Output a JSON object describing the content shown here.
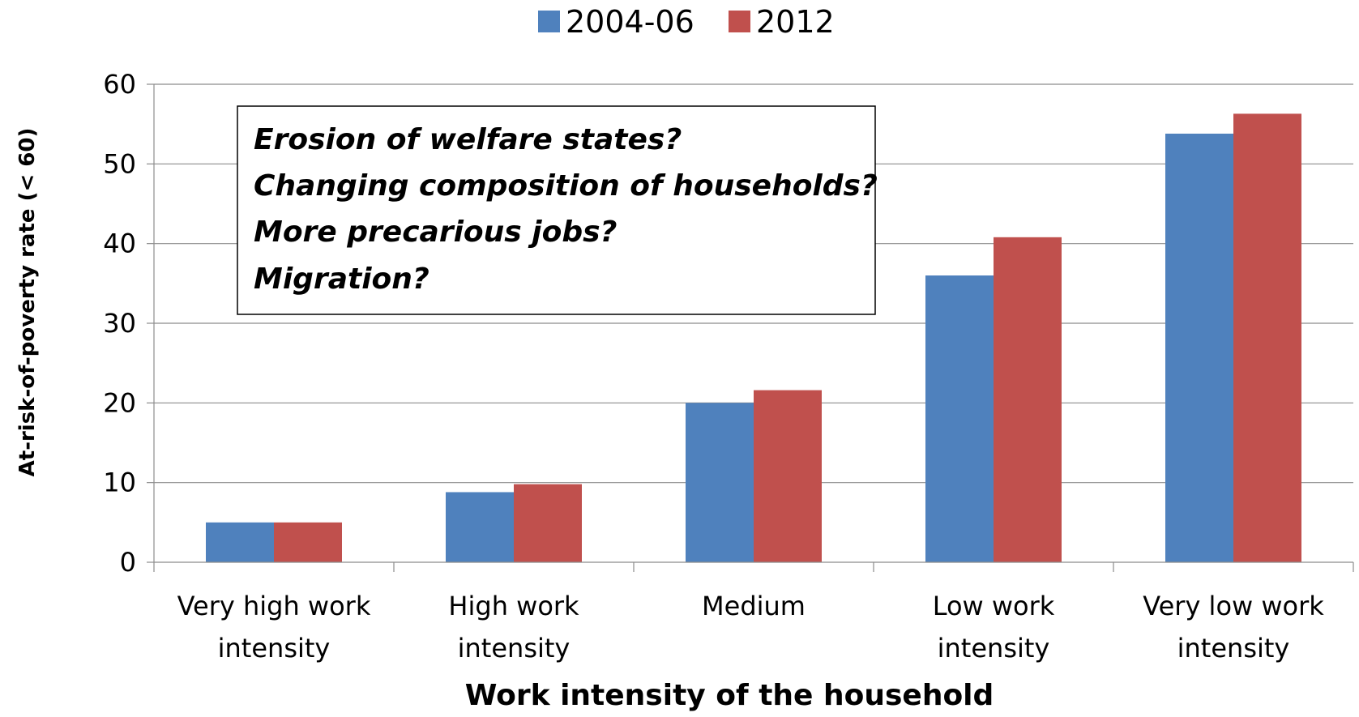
{
  "chart_data": {
    "type": "bar",
    "title": "",
    "xlabel": "Work intensity of the household",
    "ylabel": "At-risk-of-poverty rate (< 60)",
    "ylim": [
      0,
      60
    ],
    "yticks": [
      0,
      10,
      20,
      30,
      40,
      50,
      60
    ],
    "grid": true,
    "legend_position": "top-center",
    "categories": [
      [
        "Very high work",
        "intensity"
      ],
      [
        "High work",
        "intensity"
      ],
      [
        "Medium"
      ],
      [
        "Low work",
        "intensity"
      ],
      [
        "Very low work",
        "intensity"
      ]
    ],
    "series": [
      {
        "name": "2004-06",
        "color": "#4F81BD",
        "values": [
          5.0,
          8.8,
          20.0,
          36.0,
          53.8
        ]
      },
      {
        "name": "2012",
        "color": "#C0504D",
        "values": [
          5.0,
          9.8,
          21.6,
          40.8,
          56.3
        ]
      }
    ],
    "annotation": [
      "Erosion of welfare states?",
      "Changing composition of households?",
      "More precarious jobs?",
      "Migration?"
    ]
  }
}
